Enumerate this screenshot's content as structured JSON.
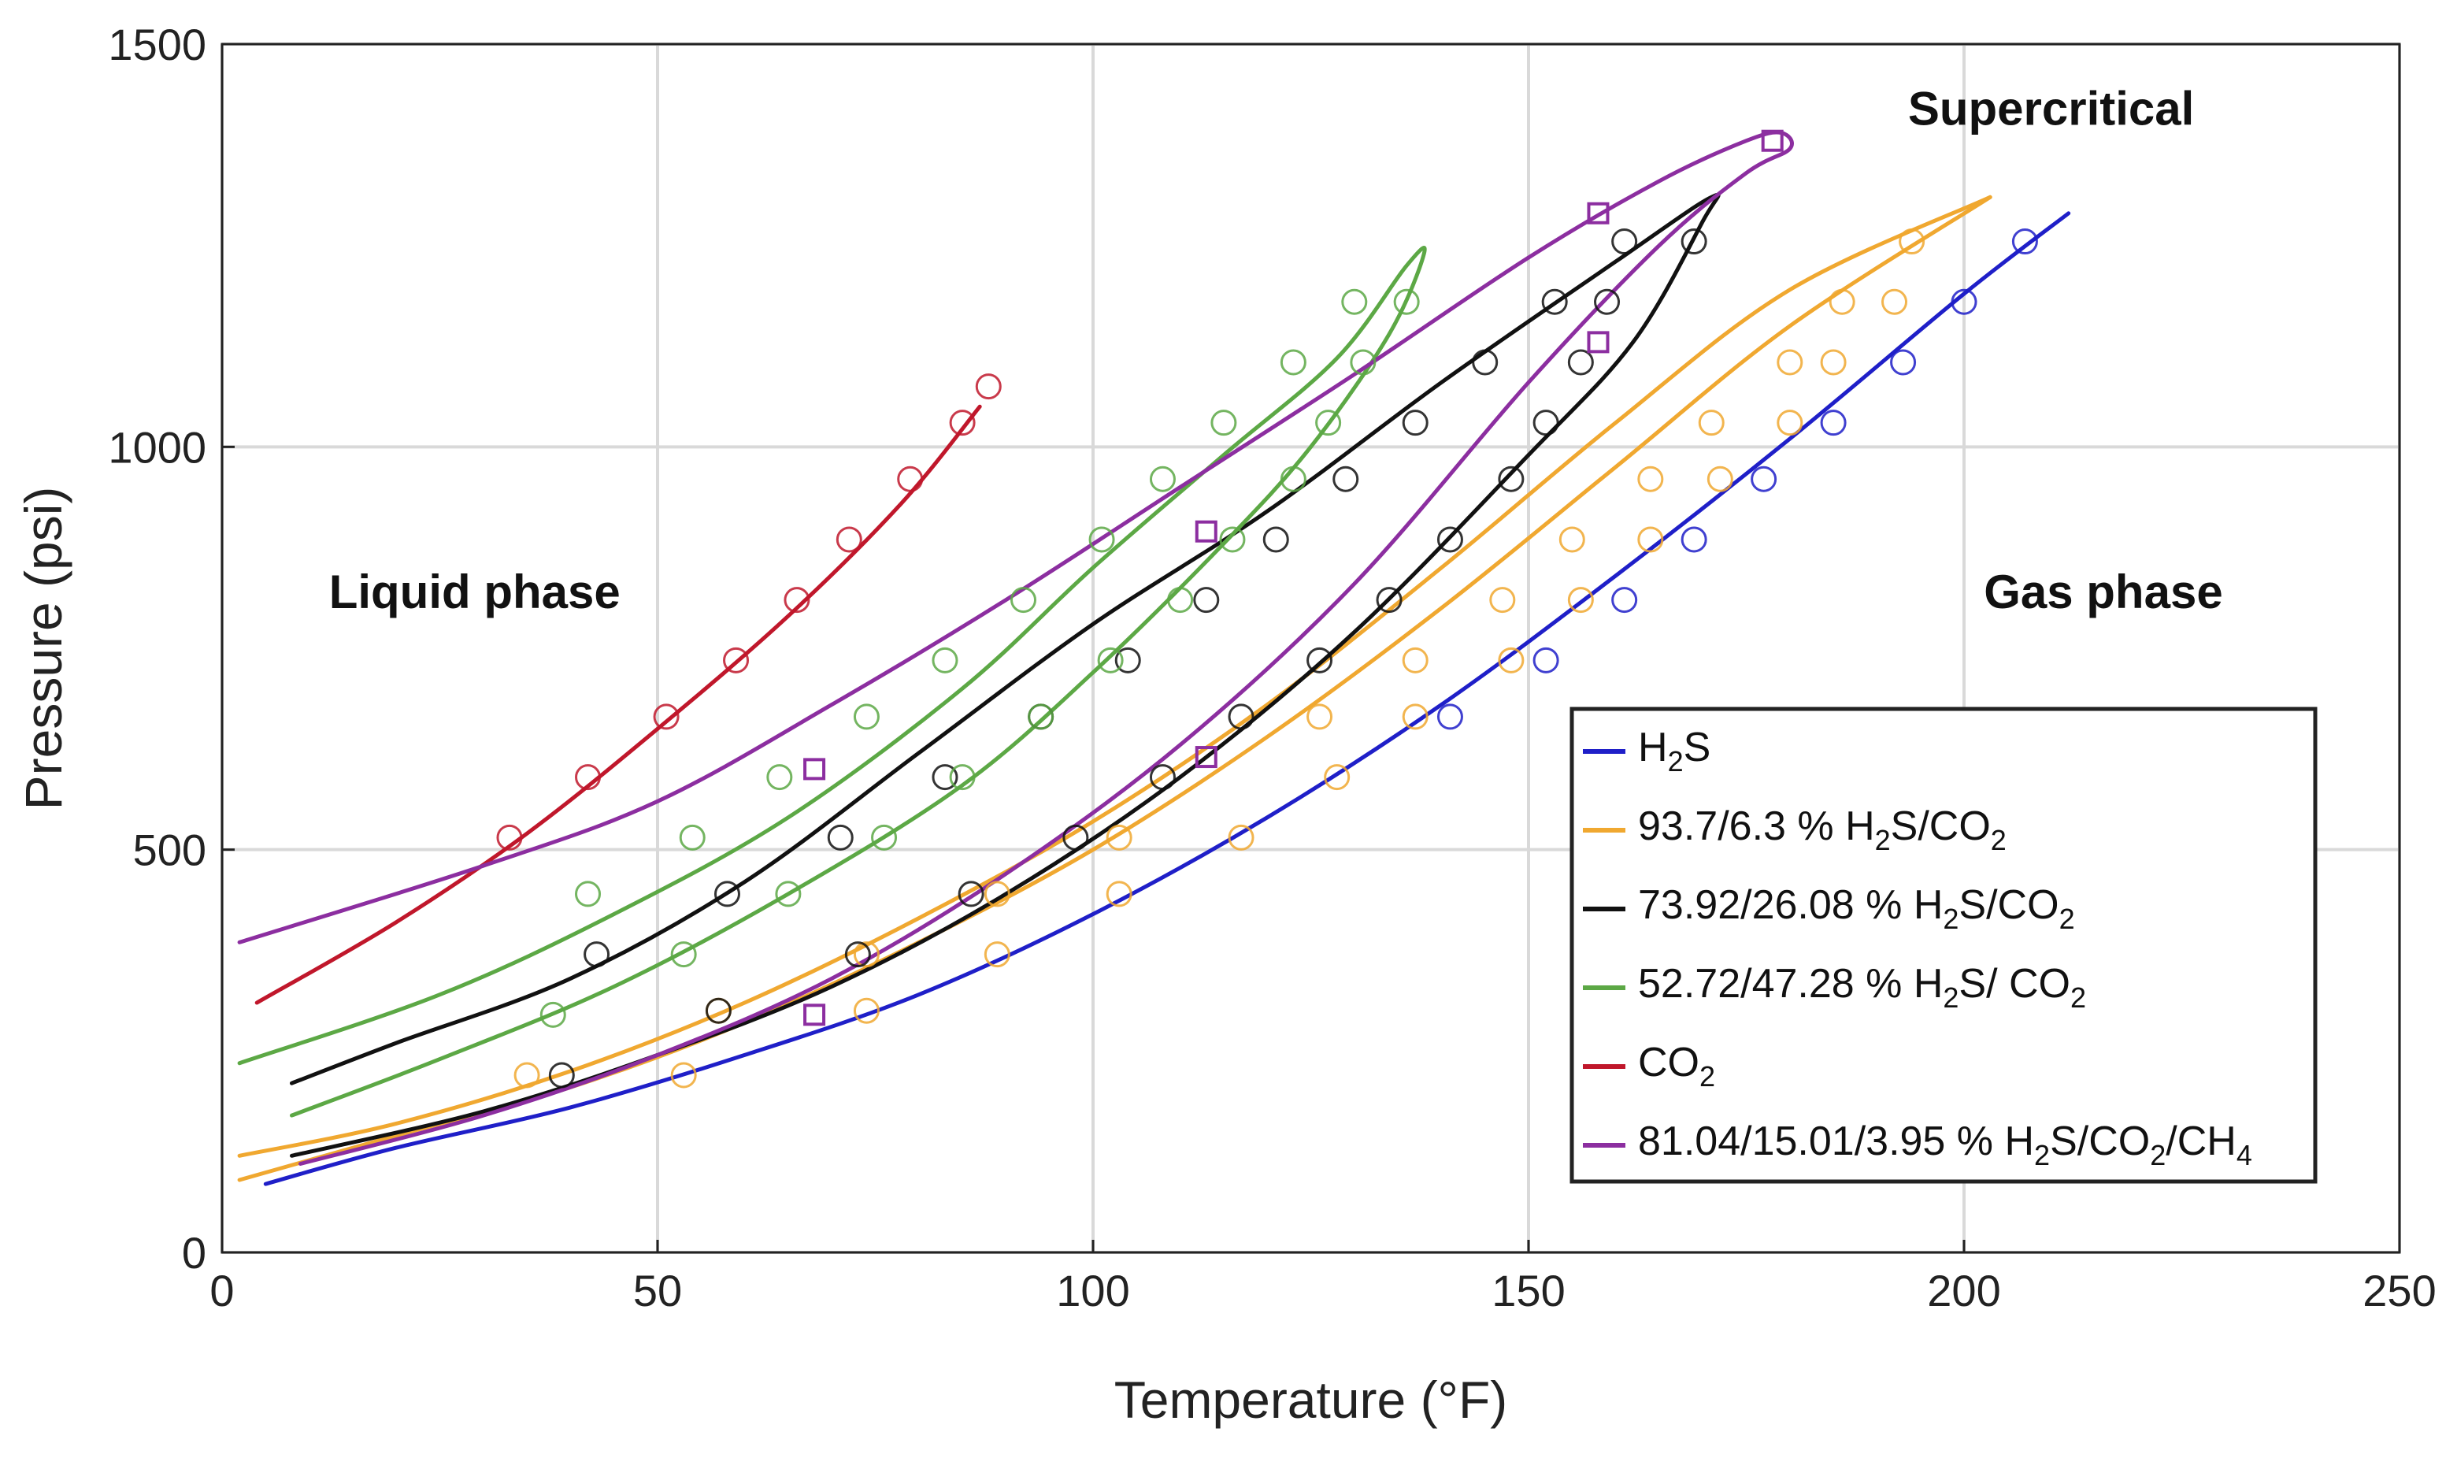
{
  "chart_data": {
    "type": "line",
    "title": "",
    "xlabel": "Temperature (°F)",
    "ylabel": "Pressure (psi)",
    "xlim": [
      0,
      250
    ],
    "ylim": [
      0,
      1500
    ],
    "xticks": [
      0,
      50,
      100,
      150,
      200,
      250
    ],
    "yticks": [
      0,
      500,
      1000,
      1500
    ],
    "grid": true,
    "legend_position": "lower-right",
    "annotations": [
      {
        "text": "Liquid phase",
        "x": 29,
        "y": 800
      },
      {
        "text": "Supercritical",
        "x": 210,
        "y": 1400
      },
      {
        "text": "Gas phase",
        "x": 216,
        "y": 800
      }
    ],
    "series": [
      {
        "name": "H2S",
        "label_parts": [
          [
            "H",
            "n"
          ],
          [
            "2",
            "sub"
          ],
          [
            "S",
            "n"
          ]
        ],
        "color": "#1f1fc8",
        "marker": "circle",
        "curves": [
          [
            [
              5,
              85
            ],
            [
              20,
              130
            ],
            [
              40,
              180
            ],
            [
              60,
              245
            ],
            [
              80,
              320
            ],
            [
              100,
              420
            ],
            [
              120,
              540
            ],
            [
              140,
              680
            ],
            [
              160,
              840
            ],
            [
              180,
              1010
            ],
            [
              200,
              1190
            ],
            [
              212,
              1290
            ]
          ]
        ],
        "points": [
          [
            141,
            665
          ],
          [
            152,
            735
          ],
          [
            161,
            810
          ],
          [
            169,
            885
          ],
          [
            177,
            960
          ],
          [
            185,
            1030
          ],
          [
            193,
            1105
          ],
          [
            200,
            1180
          ],
          [
            207,
            1255
          ]
        ]
      },
      {
        "name": "93.7/6.3 % H2S/CO2",
        "label_parts": [
          [
            "93.7/6.3 % H",
            "n"
          ],
          [
            "2",
            "sub"
          ],
          [
            "S/CO",
            "n"
          ],
          [
            "2",
            "sub"
          ]
        ],
        "color": "#f0a830",
        "marker": "circle",
        "curves": [
          [
            [
              2,
              90
            ],
            [
              20,
              145
            ],
            [
              40,
              205
            ],
            [
              60,
              285
            ],
            [
              80,
              385
            ],
            [
              100,
              500
            ],
            [
              120,
              640
            ],
            [
              140,
              800
            ],
            [
              160,
              975
            ],
            [
              180,
              1150
            ],
            [
              203,
              1310
            ]
          ],
          [
            [
              2,
              120
            ],
            [
              20,
              160
            ],
            [
              40,
              225
            ],
            [
              60,
              310
            ],
            [
              80,
              415
            ],
            [
              100,
              535
            ],
            [
              120,
              680
            ],
            [
              140,
              850
            ],
            [
              160,
              1030
            ],
            [
              180,
              1195
            ],
            [
              203,
              1310
            ]
          ]
        ],
        "points": [
          [
            35,
            220
          ],
          [
            53,
            220
          ],
          [
            74,
            300
          ],
          [
            89,
            370
          ],
          [
            103,
            445
          ],
          [
            117,
            515
          ],
          [
            128,
            590
          ],
          [
            137,
            735
          ],
          [
            148,
            735
          ],
          [
            156,
            810
          ],
          [
            164,
            885
          ],
          [
            172,
            960
          ],
          [
            180,
            1030
          ],
          [
            185,
            1105
          ],
          [
            192,
            1180
          ],
          [
            194,
            1255
          ],
          [
            147,
            810
          ],
          [
            155,
            885
          ],
          [
            164,
            960
          ],
          [
            171,
            1030
          ],
          [
            180,
            1105
          ],
          [
            186,
            1180
          ],
          [
            137,
            665
          ],
          [
            126,
            665
          ],
          [
            103,
            515
          ],
          [
            89,
            445
          ],
          [
            74,
            370
          ],
          [
            57,
            300
          ]
        ]
      },
      {
        "name": "73.92/26.08 % H2S/CO2",
        "label_parts": [
          [
            "73.92/26.08 % H",
            "n"
          ],
          [
            "2",
            "sub"
          ],
          [
            "S/CO",
            "n"
          ],
          [
            "2",
            "sub"
          ]
        ],
        "color": "#111111",
        "marker": "circle",
        "curves": [
          [
            [
              8,
              120
            ],
            [
              30,
              175
            ],
            [
              50,
              245
            ],
            [
              70,
              330
            ],
            [
              90,
              445
            ],
            [
              110,
              590
            ],
            [
              130,
              770
            ],
            [
              150,
              990
            ],
            [
              162,
              1130
            ],
            [
              170,
              1280
            ],
            [
              171,
              1310
            ],
            [
              160,
              1230
            ],
            [
              140,
              1080
            ],
            [
              120,
              920
            ],
            [
              100,
              780
            ],
            [
              80,
              620
            ],
            [
              60,
              460
            ],
            [
              40,
              340
            ],
            [
              20,
              260
            ],
            [
              8,
              210
            ]
          ]
        ],
        "points": [
          [
            39,
            220
          ],
          [
            57,
            300
          ],
          [
            73,
            370
          ],
          [
            86,
            445
          ],
          [
            98,
            515
          ],
          [
            108,
            590
          ],
          [
            117,
            665
          ],
          [
            126,
            735
          ],
          [
            134,
            810
          ],
          [
            141,
            885
          ],
          [
            148,
            960
          ],
          [
            152,
            1030
          ],
          [
            156,
            1105
          ],
          [
            159,
            1180
          ],
          [
            161,
            1255
          ],
          [
            169,
            1255
          ],
          [
            153,
            1180
          ],
          [
            145,
            1105
          ],
          [
            137,
            1030
          ],
          [
            129,
            960
          ],
          [
            121,
            885
          ],
          [
            113,
            810
          ],
          [
            104,
            735
          ],
          [
            94,
            665
          ],
          [
            83,
            590
          ],
          [
            71,
            515
          ],
          [
            58,
            445
          ],
          [
            43,
            370
          ]
        ]
      },
      {
        "name": "52.72/47.28 % H2S/ CO2",
        "label_parts": [
          [
            "52.72/47.28 % H",
            "n"
          ],
          [
            "2",
            "sub"
          ],
          [
            "S/ CO",
            "n"
          ],
          [
            "2",
            "sub"
          ]
        ],
        "color": "#5ca845",
        "marker": "circle",
        "curves": [
          [
            [
              8,
              170
            ],
            [
              25,
              240
            ],
            [
              45,
              330
            ],
            [
              65,
              445
            ],
            [
              85,
              580
            ],
            [
              100,
              720
            ],
            [
              115,
              880
            ],
            [
              125,
              1000
            ],
            [
              134,
              1140
            ],
            [
              138,
              1240
            ],
            [
              136,
              1225
            ],
            [
              128,
              1110
            ],
            [
              115,
              990
            ],
            [
              100,
              850
            ],
            [
              85,
              700
            ],
            [
              65,
              540
            ],
            [
              45,
              420
            ],
            [
              25,
              320
            ],
            [
              2,
              235
            ]
          ]
        ],
        "points": [
          [
            38,
            295
          ],
          [
            53,
            370
          ],
          [
            65,
            445
          ],
          [
            76,
            515
          ],
          [
            85,
            590
          ],
          [
            94,
            665
          ],
          [
            102,
            735
          ],
          [
            110,
            810
          ],
          [
            116,
            885
          ],
          [
            123,
            960
          ],
          [
            127,
            1030
          ],
          [
            131,
            1105
          ],
          [
            136,
            1180
          ],
          [
            130,
            1180
          ],
          [
            123,
            1105
          ],
          [
            115,
            1030
          ],
          [
            108,
            960
          ],
          [
            101,
            885
          ],
          [
            92,
            810
          ],
          [
            83,
            735
          ],
          [
            74,
            665
          ],
          [
            64,
            590
          ],
          [
            54,
            515
          ],
          [
            42,
            445
          ]
        ]
      },
      {
        "name": "CO2",
        "label_parts": [
          [
            "CO",
            "n"
          ],
          [
            "2",
            "sub"
          ]
        ],
        "color": "#c0172b",
        "marker": "circle",
        "curves": [
          [
            [
              4,
              310
            ],
            [
              20,
              410
            ],
            [
              35,
              520
            ],
            [
              50,
              650
            ],
            [
              65,
              790
            ],
            [
              78,
              930
            ],
            [
              87,
              1050
            ]
          ]
        ],
        "points": [
          [
            33,
            515
          ],
          [
            42,
            590
          ],
          [
            51,
            665
          ],
          [
            59,
            735
          ],
          [
            66,
            810
          ],
          [
            72,
            885
          ],
          [
            79,
            960
          ],
          [
            85,
            1030
          ],
          [
            88,
            1075
          ]
        ]
      },
      {
        "name": "81.04/15.01/3.95 % H2S/CO2/CH4",
        "label_parts": [
          [
            "81.04/15.01/3.95 % H",
            "n"
          ],
          [
            "2",
            "sub"
          ],
          [
            "S/CO",
            "n"
          ],
          [
            "2",
            "sub"
          ],
          [
            "/CH",
            "n"
          ],
          [
            "4",
            "sub"
          ]
        ],
        "color": "#8c2ea0",
        "marker": "square",
        "curves": [
          [
            [
              9,
              110
            ],
            [
              30,
              170
            ],
            [
              50,
              245
            ],
            [
              70,
              340
            ],
            [
              90,
              470
            ],
            [
              110,
              630
            ],
            [
              130,
              830
            ],
            [
              150,
              1080
            ],
            [
              165,
              1250
            ],
            [
              175,
              1340
            ],
            [
              180,
              1370
            ],
            [
              179,
              1390
            ],
            [
              175,
              1380
            ],
            [
              165,
              1330
            ],
            [
              150,
              1235
            ],
            [
              130,
              1090
            ],
            [
              110,
              950
            ],
            [
              90,
              810
            ],
            [
              70,
              680
            ],
            [
              50,
              560
            ],
            [
              30,
              480
            ],
            [
              2,
              385
            ]
          ]
        ],
        "points": [
          [
            68,
            600
          ],
          [
            68,
            295
          ],
          [
            113,
            895
          ],
          [
            113,
            615
          ],
          [
            158,
            1290
          ],
          [
            158,
            1130
          ],
          [
            178,
            1380
          ]
        ]
      }
    ]
  }
}
